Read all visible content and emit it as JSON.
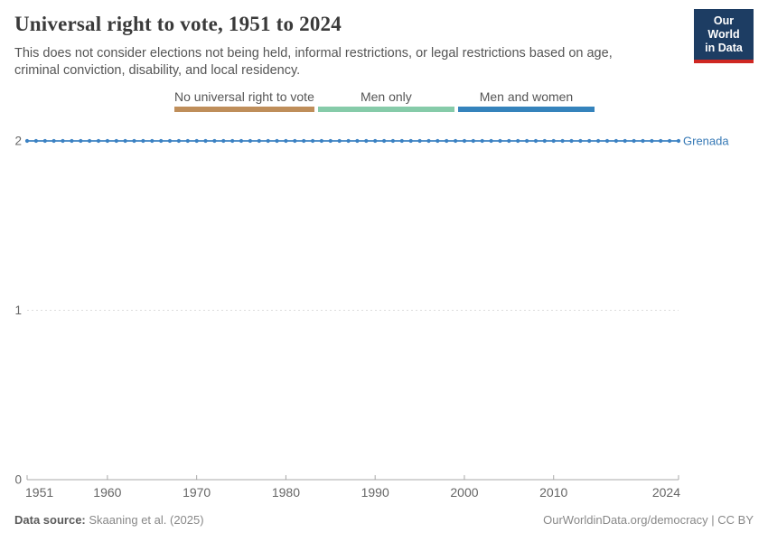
{
  "header": {
    "title": "Universal right to vote, 1951 to 2024",
    "subtitle": "This does not consider elections not being held, informal restrictions, or legal restrictions based on age, criminal conviction, disability, and local residency.",
    "logo": {
      "line1": "Our World",
      "line2": "in Data",
      "bg_color": "#1d3d63",
      "accent_color": "#cf2722"
    }
  },
  "legend": {
    "items": [
      {
        "label": "No universal right to vote",
        "value": 0,
        "color": "#bf8e5a"
      },
      {
        "label": "Men only",
        "value": 1,
        "color": "#86cba9"
      },
      {
        "label": "Men and women",
        "value": 2,
        "color": "#3583bc"
      }
    ]
  },
  "chart_data": {
    "type": "line",
    "title": "Universal right to vote, 1951 to 2024",
    "entity_label": "Grenada",
    "x_start": 1951,
    "x_end": 2024,
    "x_step": 1,
    "x_ticks": [
      1951,
      1960,
      1970,
      1980,
      1990,
      2000,
      2010,
      2024
    ],
    "y_ticks": [
      0,
      1,
      2
    ],
    "ylim": [
      0,
      2
    ],
    "grid": "horizontal-dashed",
    "value_meaning": {
      "0": "No universal right to vote",
      "1": "Men only",
      "2": "Men and women"
    },
    "series": [
      {
        "name": "Grenada",
        "color": "#3c82c3",
        "label_color": "#3578b5",
        "constant_value": 2,
        "category_label": "Men and women"
      }
    ],
    "axis_color": "#a8a8a8",
    "grid_color": "#dcdcdc",
    "tick_label_color": "#666666"
  },
  "footer": {
    "source_label": "Data source:",
    "source_value": "Skaaning et al. (2025)",
    "right_text": "OurWorldinData.org/democracy | CC BY"
  }
}
